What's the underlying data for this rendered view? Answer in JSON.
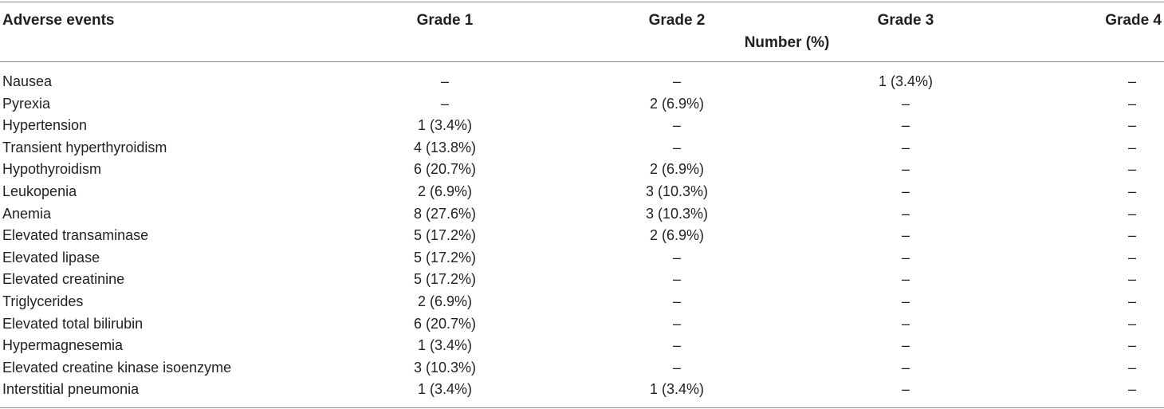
{
  "table": {
    "headers": {
      "adverse_events": "Adverse events",
      "grade1": "Grade 1",
      "grade2": "Grade 2",
      "grade3": "Grade 3",
      "grade4": "Grade 4",
      "unit": "Number (%)"
    },
    "rows": [
      {
        "event": "Nausea",
        "grade1": "–",
        "grade2": "–",
        "grade3": "1 (3.4%)",
        "grade4": "–"
      },
      {
        "event": "Pyrexia",
        "grade1": "–",
        "grade2": "2 (6.9%)",
        "grade3": "–",
        "grade4": "–"
      },
      {
        "event": "Hypertension",
        "grade1": "1 (3.4%)",
        "grade2": "–",
        "grade3": "–",
        "grade4": "–"
      },
      {
        "event": "Transient hyperthyroidism",
        "grade1": "4 (13.8%)",
        "grade2": "–",
        "grade3": "–",
        "grade4": "–"
      },
      {
        "event": "Hypothyroidism",
        "grade1": "6 (20.7%)",
        "grade2": "2 (6.9%)",
        "grade3": "–",
        "grade4": "–"
      },
      {
        "event": "Leukopenia",
        "grade1": "2 (6.9%)",
        "grade2": "3 (10.3%)",
        "grade3": "–",
        "grade4": "–"
      },
      {
        "event": "Anemia",
        "grade1": "8 (27.6%)",
        "grade2": "3 (10.3%)",
        "grade3": "–",
        "grade4": "–"
      },
      {
        "event": "Elevated transaminase",
        "grade1": "5 (17.2%)",
        "grade2": "2 (6.9%)",
        "grade3": "–",
        "grade4": "–"
      },
      {
        "event": "Elevated lipase",
        "grade1": "5 (17.2%)",
        "grade2": "–",
        "grade3": "–",
        "grade4": "–"
      },
      {
        "event": "Elevated creatinine",
        "grade1": "5 (17.2%)",
        "grade2": "–",
        "grade3": "–",
        "grade4": "–"
      },
      {
        "event": "Triglycerides",
        "grade1": "2 (6.9%)",
        "grade2": "–",
        "grade3": "–",
        "grade4": "–"
      },
      {
        "event": "Elevated total bilirubin",
        "grade1": "6 (20.7%)",
        "grade2": "–",
        "grade3": "–",
        "grade4": "–"
      },
      {
        "event": "Hypermagnesemia",
        "grade1": "1 (3.4%)",
        "grade2": "–",
        "grade3": "–",
        "grade4": "–"
      },
      {
        "event": "Elevated creatine kinase isoenzyme",
        "grade1": "3 (10.3%)",
        "grade2": "–",
        "grade3": "–",
        "grade4": "–"
      },
      {
        "event": "Interstitial pneumonia",
        "grade1": "1 (3.4%)",
        "grade2": "1 (3.4%)",
        "grade3": "–",
        "grade4": "–"
      }
    ]
  },
  "colors": {
    "text": "#231f20",
    "rule": "#8a8a8a",
    "background": "#ffffff"
  }
}
